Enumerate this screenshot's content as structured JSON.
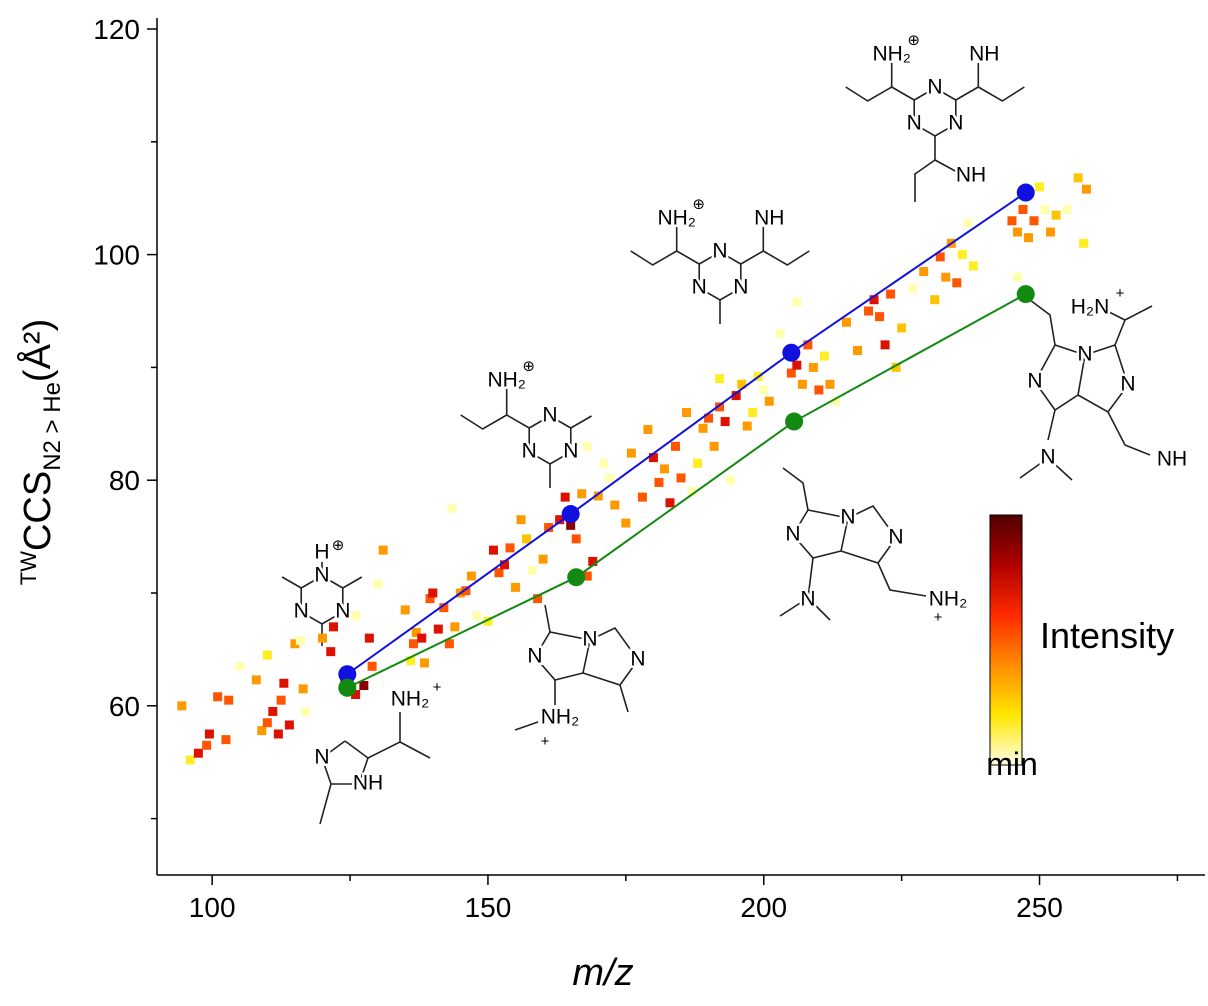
{
  "chart_data": {
    "type": "scatter",
    "x_label": "m/z",
    "y_label": {
      "prefix": "TW",
      "main": "CCS",
      "sub": "N2 > He",
      "suffix": "(Å²)"
    },
    "xlim": [
      90,
      280
    ],
    "ylim": [
      45,
      120
    ],
    "xticks": [
      100,
      150,
      200,
      250
    ],
    "xminorticks": [
      125,
      175,
      225,
      275
    ],
    "yticks": [
      60,
      80,
      100,
      120
    ],
    "yminorticks": [
      50,
      70,
      90,
      110
    ],
    "points": {
      "x": [
        94.5,
        96,
        97.5,
        99,
        99.5,
        101,
        102.5,
        103,
        105,
        108,
        109,
        110,
        111,
        112,
        112.5,
        113,
        114,
        115,
        116.5,
        117,
        116,
        110,
        120,
        121.5,
        122,
        124,
        126,
        127.5,
        128.5,
        129,
        130,
        131,
        126,
        135,
        136,
        136.5,
        137,
        138,
        138.5,
        139.5,
        140,
        141,
        142,
        143,
        143.5,
        144,
        145,
        146,
        147,
        148,
        150,
        151,
        152,
        153,
        154,
        155,
        156,
        157,
        158,
        159,
        160,
        161,
        163,
        164,
        165,
        166,
        167,
        168,
        169,
        170,
        171,
        168,
        172,
        173,
        175,
        176,
        178,
        179,
        180,
        181,
        182,
        183,
        184,
        185,
        186,
        187,
        188,
        189,
        190,
        191,
        192,
        193,
        194,
        195,
        196,
        197,
        198,
        199,
        200,
        201,
        203,
        205,
        206,
        207,
        208,
        209,
        210,
        211,
        212,
        213,
        215,
        217,
        219,
        220,
        221,
        222,
        223,
        224,
        225,
        227,
        229,
        231,
        232,
        233,
        234,
        235,
        236,
        237,
        238,
        245,
        246,
        247,
        248,
        249,
        250,
        251,
        252,
        253,
        255,
        257,
        258,
        258.5,
        246,
        206,
        192
      ],
      "y": [
        60,
        55.2,
        55.8,
        56.5,
        57.5,
        60.8,
        57,
        60.5,
        63.5,
        62.3,
        57.8,
        58.5,
        59.5,
        57.5,
        60.5,
        62,
        58.3,
        65.5,
        61.5,
        59.5,
        65.8,
        64.5,
        66,
        64.8,
        67,
        62.5,
        61,
        61.8,
        66,
        63.5,
        70.8,
        73.8,
        68,
        68.5,
        64,
        65.5,
        66.5,
        66,
        63.8,
        69.5,
        70,
        66.8,
        68.7,
        65.5,
        77.5,
        67,
        70,
        70.2,
        71.5,
        68,
        67.5,
        73.8,
        71.8,
        72.5,
        74,
        70.5,
        76.5,
        74.8,
        72,
        69.5,
        73,
        75.8,
        76.5,
        78.5,
        76,
        74.8,
        78.8,
        71.5,
        72.8,
        78.6,
        81.5,
        83,
        80.2,
        77.8,
        76.2,
        82.4,
        78.5,
        84.5,
        82,
        79.8,
        81,
        78,
        83,
        80.2,
        86,
        79,
        81.5,
        84.6,
        85.5,
        83,
        86.5,
        85.2,
        80,
        87.5,
        88.5,
        84.8,
        86,
        89.2,
        88,
        87,
        93,
        89.5,
        90.2,
        88.5,
        92,
        90,
        88,
        91,
        88.5,
        87,
        94,
        91.5,
        95,
        96,
        94.5,
        92,
        96.5,
        90,
        93.5,
        97,
        98.5,
        96,
        99.8,
        98,
        101,
        97.5,
        100,
        102.8,
        99,
        103,
        102,
        104,
        101.5,
        103,
        106,
        104,
        102,
        103.5,
        104,
        106.8,
        101,
        105.8,
        98,
        95.8,
        89
      ],
      "colors": [
        "#ff9900",
        "#ffee22",
        "#dd1100",
        "#ff5500",
        "#dd1100",
        "#ff5500",
        "#ff5500",
        "#ff5500",
        "#ffffb0",
        "#ff9900",
        "#ff9900",
        "#ff5500",
        "#dd1100",
        "#dd1100",
        "#ff5500",
        "#dd1100",
        "#dd1100",
        "#ff9900",
        "#ff9900",
        "#ffffb0",
        "#ffffb0",
        "#ffee22",
        "#ff9900",
        "#dd1100",
        "#dd1100",
        "#ff5500",
        "#dd1100",
        "#8b0000",
        "#dd1100",
        "#ff5500",
        "#ffffb0",
        "#ff9900",
        "#ffffb0",
        "#ff9900",
        "#ffee22",
        "#ff5500",
        "#ff9900",
        "#dd1100",
        "#ff9900",
        "#ff5500",
        "#dd1100",
        "#dd1100",
        "#ff5500",
        "#ff5500",
        "#ffffb0",
        "#ff9900",
        "#ff9900",
        "#ff5500",
        "#ff9900",
        "#ffffb0",
        "#ffee22",
        "#dd1100",
        "#ff5500",
        "#dd1100",
        "#ff5500",
        "#ff9900",
        "#ff9900",
        "#ffc400",
        "#ffffb0",
        "#ff5500",
        "#ff9900",
        "#ff5500",
        "#dd1100",
        "#dd1100",
        "#8b0000",
        "#ff5500",
        "#ff9900",
        "#ff5500",
        "#dd1100",
        "#ff9900",
        "#ffffb0",
        "#ffffb0",
        "#ffffb0",
        "#ff9900",
        "#ff9900",
        "#ff9900",
        "#ff5500",
        "#ff9900",
        "#dd1100",
        "#ff5500",
        "#ff9900",
        "#dd1100",
        "#ff5500",
        "#ff5500",
        "#ff9900",
        "#ffffb0",
        "#ffee22",
        "#ff9900",
        "#ff5500",
        "#ff9900",
        "#ff5500",
        "#dd1100",
        "#ffffb0",
        "#dd1100",
        "#ffc400",
        "#ff9900",
        "#ffee22",
        "#ffee22",
        "#ffffb0",
        "#ff9900",
        "#ffffb0",
        "#ff5500",
        "#dd1100",
        "#ff9900",
        "#ff5500",
        "#ff9900",
        "#ff5500",
        "#ffee22",
        "#ff9900",
        "#ffffb0",
        "#ff9900",
        "#ff9900",
        "#ff5500",
        "#dd1100",
        "#ff5500",
        "#dd1100",
        "#ff5500",
        "#ffc400",
        "#ffc400",
        "#ffffb0",
        "#ff9900",
        "#ffc400",
        "#ff5500",
        "#ff9900",
        "#ff9900",
        "#ff5500",
        "#ffee22",
        "#ffffb0",
        "#ffee22",
        "#ff5500",
        "#ff9900",
        "#ff5500",
        "#ff9900",
        "#ff5500",
        "#ffee22",
        "#ffffb0",
        "#ff9900",
        "#ffc400",
        "#ffffb0",
        "#ffc400",
        "#ffee22",
        "#ff9900",
        "#ffffb0",
        "#ffffb0",
        "#ffee22"
      ]
    },
    "lines": [
      {
        "color": "#1010e0",
        "x": [
          124.5,
          165,
          205,
          247.5
        ],
        "y": [
          62.8,
          77,
          91.3,
          105.5
        ]
      },
      {
        "color": "#128a12",
        "x": [
          124.5,
          166,
          205.5,
          247.5
        ],
        "y": [
          61.6,
          71.4,
          85.2,
          96.5
        ]
      }
    ],
    "colorbar": {
      "label": "Intensity",
      "min_label": "min",
      "colors": [
        "#500000",
        "#b00000",
        "#ff2a00",
        "#ff8c00",
        "#ffe600",
        "#ffffe8"
      ]
    },
    "structures": [
      [
        "H",
        "⊕",
        "N",
        "N",
        "N"
      ],
      [
        "NH₂",
        "+",
        "N",
        "NH"
      ],
      [
        "NH₂",
        "⊕",
        "N",
        "N",
        "N"
      ],
      [
        "N",
        "N",
        "N",
        "NH₂",
        "+"
      ],
      [
        "NH₂",
        "⊕",
        "NH",
        "N",
        "N",
        "N"
      ],
      [
        "N",
        "N",
        "N",
        "N",
        "NH₂",
        "+"
      ],
      [
        "NH₂",
        "⊕",
        "NH",
        "N",
        "N",
        "N",
        "NH"
      ],
      [
        "H₂N",
        "+",
        "N",
        "N",
        "N",
        "N",
        "NH"
      ]
    ]
  }
}
